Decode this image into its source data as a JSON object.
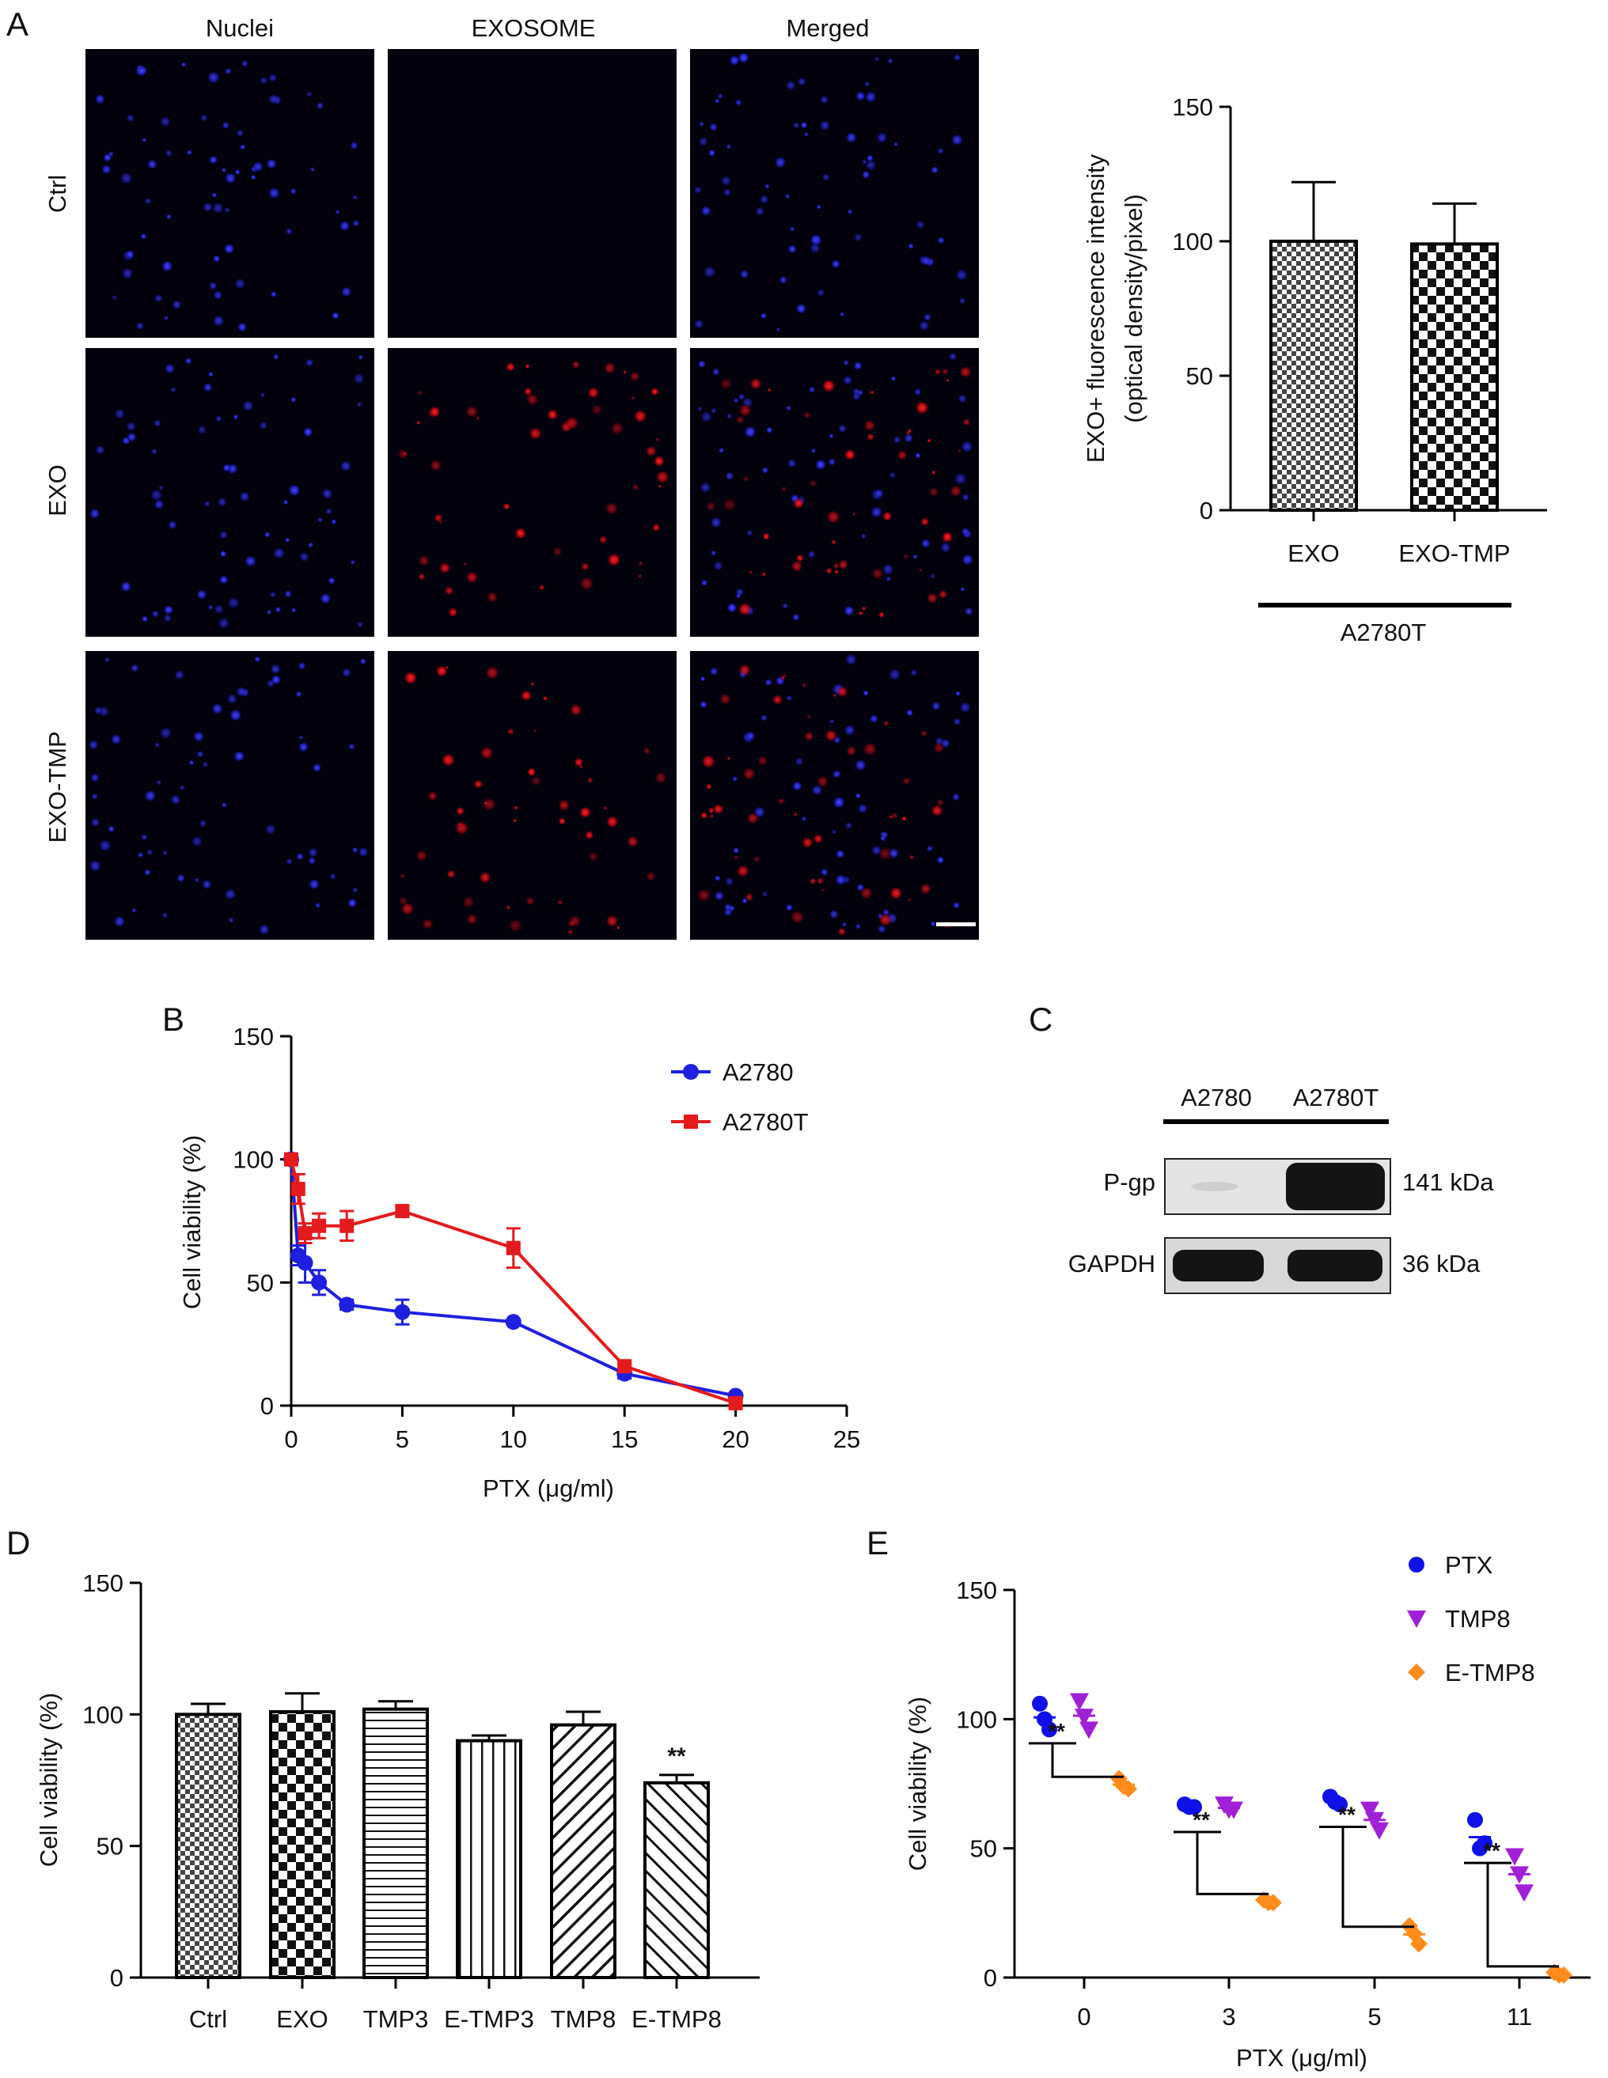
{
  "panels": {
    "a": {
      "letter": "A",
      "columns": [
        "Nuclei",
        "EXOSOME",
        "Merged"
      ],
      "rows": [
        "Ctrl",
        "EXO",
        "EXO-TMP"
      ]
    },
    "b": {
      "letter": "B"
    },
    "c": {
      "letter": "C",
      "lanes": [
        "A2780",
        "A2780T"
      ],
      "bands": [
        {
          "name": "P-gp",
          "size": "141 kDa"
        },
        {
          "name": "GAPDH",
          "size": "36 kDa"
        }
      ]
    },
    "d": {
      "letter": "D"
    },
    "e": {
      "letter": "E"
    }
  },
  "chart_data": [
    {
      "id": "a_bar",
      "type": "bar",
      "categories": [
        "EXO",
        "EXO-TMP"
      ],
      "values": [
        100,
        99
      ],
      "errors": [
        22,
        15
      ],
      "patterns": [
        "fine-check",
        "check"
      ],
      "ylabel_line1": "EXO+ fluorescence intensity",
      "ylabel_line2": "(optical density/pixel)",
      "ylim": [
        0,
        150
      ],
      "yticks": [
        0,
        50,
        100,
        150
      ],
      "group_label": "A2780T"
    },
    {
      "id": "b_line",
      "type": "line",
      "xlabel": "PTX (μg/ml)",
      "ylabel": "Cell viability (%)",
      "xlim": [
        0,
        25
      ],
      "ylim": [
        0,
        150
      ],
      "xticks": [
        0,
        5,
        10,
        15,
        20,
        25
      ],
      "yticks": [
        0,
        50,
        100,
        150
      ],
      "legend_position": "top-right",
      "series": [
        {
          "name": "A2780",
          "color": "#1f1fe0",
          "marker": "circle",
          "x": [
            0,
            0.3125,
            0.625,
            1.25,
            2.5,
            5,
            10,
            15,
            20
          ],
          "y": [
            100,
            61,
            58,
            50,
            41,
            38,
            34,
            13,
            4
          ],
          "err": [
            0,
            4,
            8,
            5,
            2,
            5,
            1,
            2,
            1
          ]
        },
        {
          "name": "A2780T",
          "color": "#e41a1c",
          "marker": "square",
          "x": [
            0,
            0.3125,
            0.625,
            1.25,
            2.5,
            5,
            10,
            15,
            20
          ],
          "y": [
            100,
            88,
            70,
            73,
            73,
            79,
            64,
            16,
            1
          ],
          "err": [
            0,
            6,
            4,
            5,
            6,
            2,
            8,
            1,
            1
          ]
        }
      ]
    },
    {
      "id": "d_bar",
      "type": "bar",
      "categories": [
        "Ctrl",
        "EXO",
        "TMP3",
        "E-TMP3",
        "TMP8",
        "E-TMP8"
      ],
      "values": [
        100,
        101,
        102,
        90,
        96,
        74
      ],
      "errors": [
        4,
        7,
        3,
        2,
        5,
        3
      ],
      "patterns": [
        "fine-check",
        "check",
        "hlines",
        "vlines",
        "diag-right",
        "diag-left"
      ],
      "annotations": [
        "",
        "",
        "",
        "",
        "",
        "**"
      ],
      "ylabel": "Cell viability (%)",
      "ylim": [
        0,
        150
      ],
      "yticks": [
        0,
        50,
        100,
        150
      ]
    },
    {
      "id": "e_scatter",
      "type": "scatter",
      "categories": [
        "0",
        "3",
        "5",
        "11"
      ],
      "xlabel": "PTX (μg/ml)",
      "ylabel": "Cell viability (%)",
      "ylim": [
        0,
        150
      ],
      "yticks": [
        0,
        50,
        100,
        150
      ],
      "legend_position": "top-right",
      "significance": "**",
      "series": [
        {
          "name": "PTX",
          "color": "#1010e8",
          "marker": "circle",
          "points": [
            [
              106,
              100,
              96
            ],
            [
              67,
              66,
              66
            ],
            [
              70,
              68,
              67
            ],
            [
              61,
              50,
              52
            ]
          ]
        },
        {
          "name": "TMP8",
          "color": "#a020d8",
          "marker": "triangle-down",
          "points": [
            [
              107,
              101,
              96
            ],
            [
              67,
              65,
              65
            ],
            [
              65,
              61,
              57
            ],
            [
              47,
              40,
              33
            ]
          ]
        },
        {
          "name": "E-TMP8",
          "color": "#ff8c1a",
          "marker": "diamond",
          "points": [
            [
              77,
              74,
              73
            ],
            [
              30,
              29,
              29
            ],
            [
              20,
              17,
              13
            ],
            [
              2,
              1,
              1
            ]
          ]
        }
      ]
    }
  ]
}
